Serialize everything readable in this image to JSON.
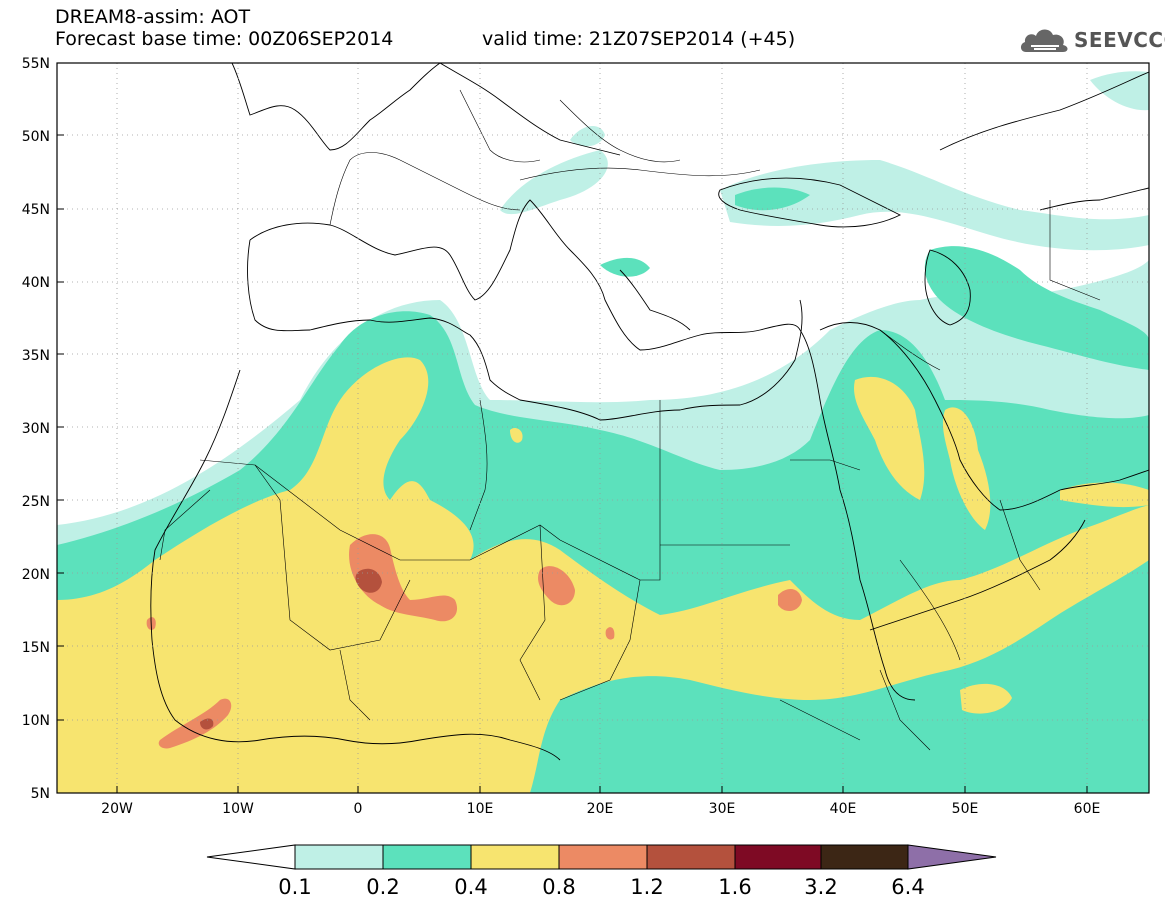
{
  "header": {
    "model_title": "DREAM8-assim: AOT",
    "base_time": "Forecast base time: 00Z06SEP2014",
    "valid_time": "valid time: 21Z07SEP2014 (+45)"
  },
  "logo": {
    "text": "SEEVCCC",
    "icon": "cloud-icon"
  },
  "map": {
    "lat_labels": [
      "55N",
      "50N",
      "45N",
      "40N",
      "35N",
      "30N",
      "25N",
      "20N",
      "15N",
      "10N",
      "5N"
    ],
    "lon_labels": [
      "20W",
      "10W",
      "0",
      "10E",
      "20E",
      "30E",
      "40E",
      "50E",
      "60E"
    ]
  },
  "colorbar": {
    "labels": [
      "0.1",
      "0.2",
      "0.4",
      "0.8",
      "1.2",
      "1.6",
      "3.2",
      "6.4"
    ],
    "colors": [
      "#bff0e6",
      "#5ce1bc",
      "#f7e46f",
      "#ec8a64",
      "#b4513d",
      "#7e0a24",
      "#3c2615",
      "#8e6fa8"
    ],
    "under_color": "#ffffff"
  }
}
